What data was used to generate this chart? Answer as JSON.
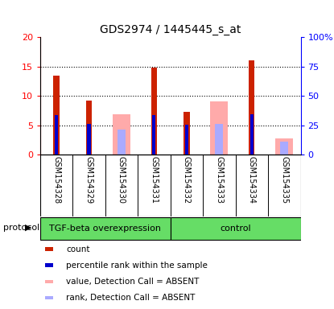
{
  "title": "GDS2974 / 1445445_s_at",
  "samples": [
    "GSM154328",
    "GSM154329",
    "GSM154330",
    "GSM154331",
    "GSM154332",
    "GSM154333",
    "GSM154334",
    "GSM154335"
  ],
  "count_values": [
    13.5,
    9.2,
    null,
    14.8,
    7.2,
    null,
    16.1,
    null
  ],
  "percentile_values": [
    6.7,
    5.2,
    null,
    6.7,
    5.1,
    null,
    6.8,
    null
  ],
  "absent_value_values": [
    null,
    null,
    6.8,
    null,
    null,
    9.0,
    null,
    2.8
  ],
  "absent_rank_values": [
    null,
    null,
    4.3,
    null,
    null,
    5.2,
    null,
    2.2
  ],
  "count_color": "#cc2200",
  "percentile_color": "#0000cc",
  "absent_value_color": "#ffaaaa",
  "absent_rank_color": "#aaaaff",
  "ylim_left": [
    0,
    20
  ],
  "ylim_right": [
    0,
    100
  ],
  "yticks_left": [
    0,
    5,
    10,
    15,
    20
  ],
  "yticks_right": [
    0,
    25,
    50,
    75,
    100
  ],
  "ytick_labels_left": [
    "0",
    "5",
    "10",
    "15",
    "20"
  ],
  "ytick_labels_right": [
    "0",
    "25",
    "50",
    "75",
    "100%"
  ],
  "group_label_tgf": "TGF-beta overexpression",
  "group_label_control": "control",
  "tgf_indices": [
    0,
    1,
    2,
    3
  ],
  "ctrl_indices": [
    4,
    5,
    6,
    7
  ],
  "group_green": "#66dd66",
  "bg_gray": "#cccccc",
  "legend_items": [
    {
      "label": "count",
      "color": "#cc2200"
    },
    {
      "label": "percentile rank within the sample",
      "color": "#0000cc"
    },
    {
      "label": "value, Detection Call = ABSENT",
      "color": "#ffaaaa"
    },
    {
      "label": "rank, Detection Call = ABSENT",
      "color": "#aaaaff"
    }
  ],
  "protocol_label": "protocol",
  "title_fontsize": 10,
  "tick_fontsize": 8,
  "sample_fontsize": 7,
  "legend_fontsize": 7.5,
  "group_fontsize": 8
}
